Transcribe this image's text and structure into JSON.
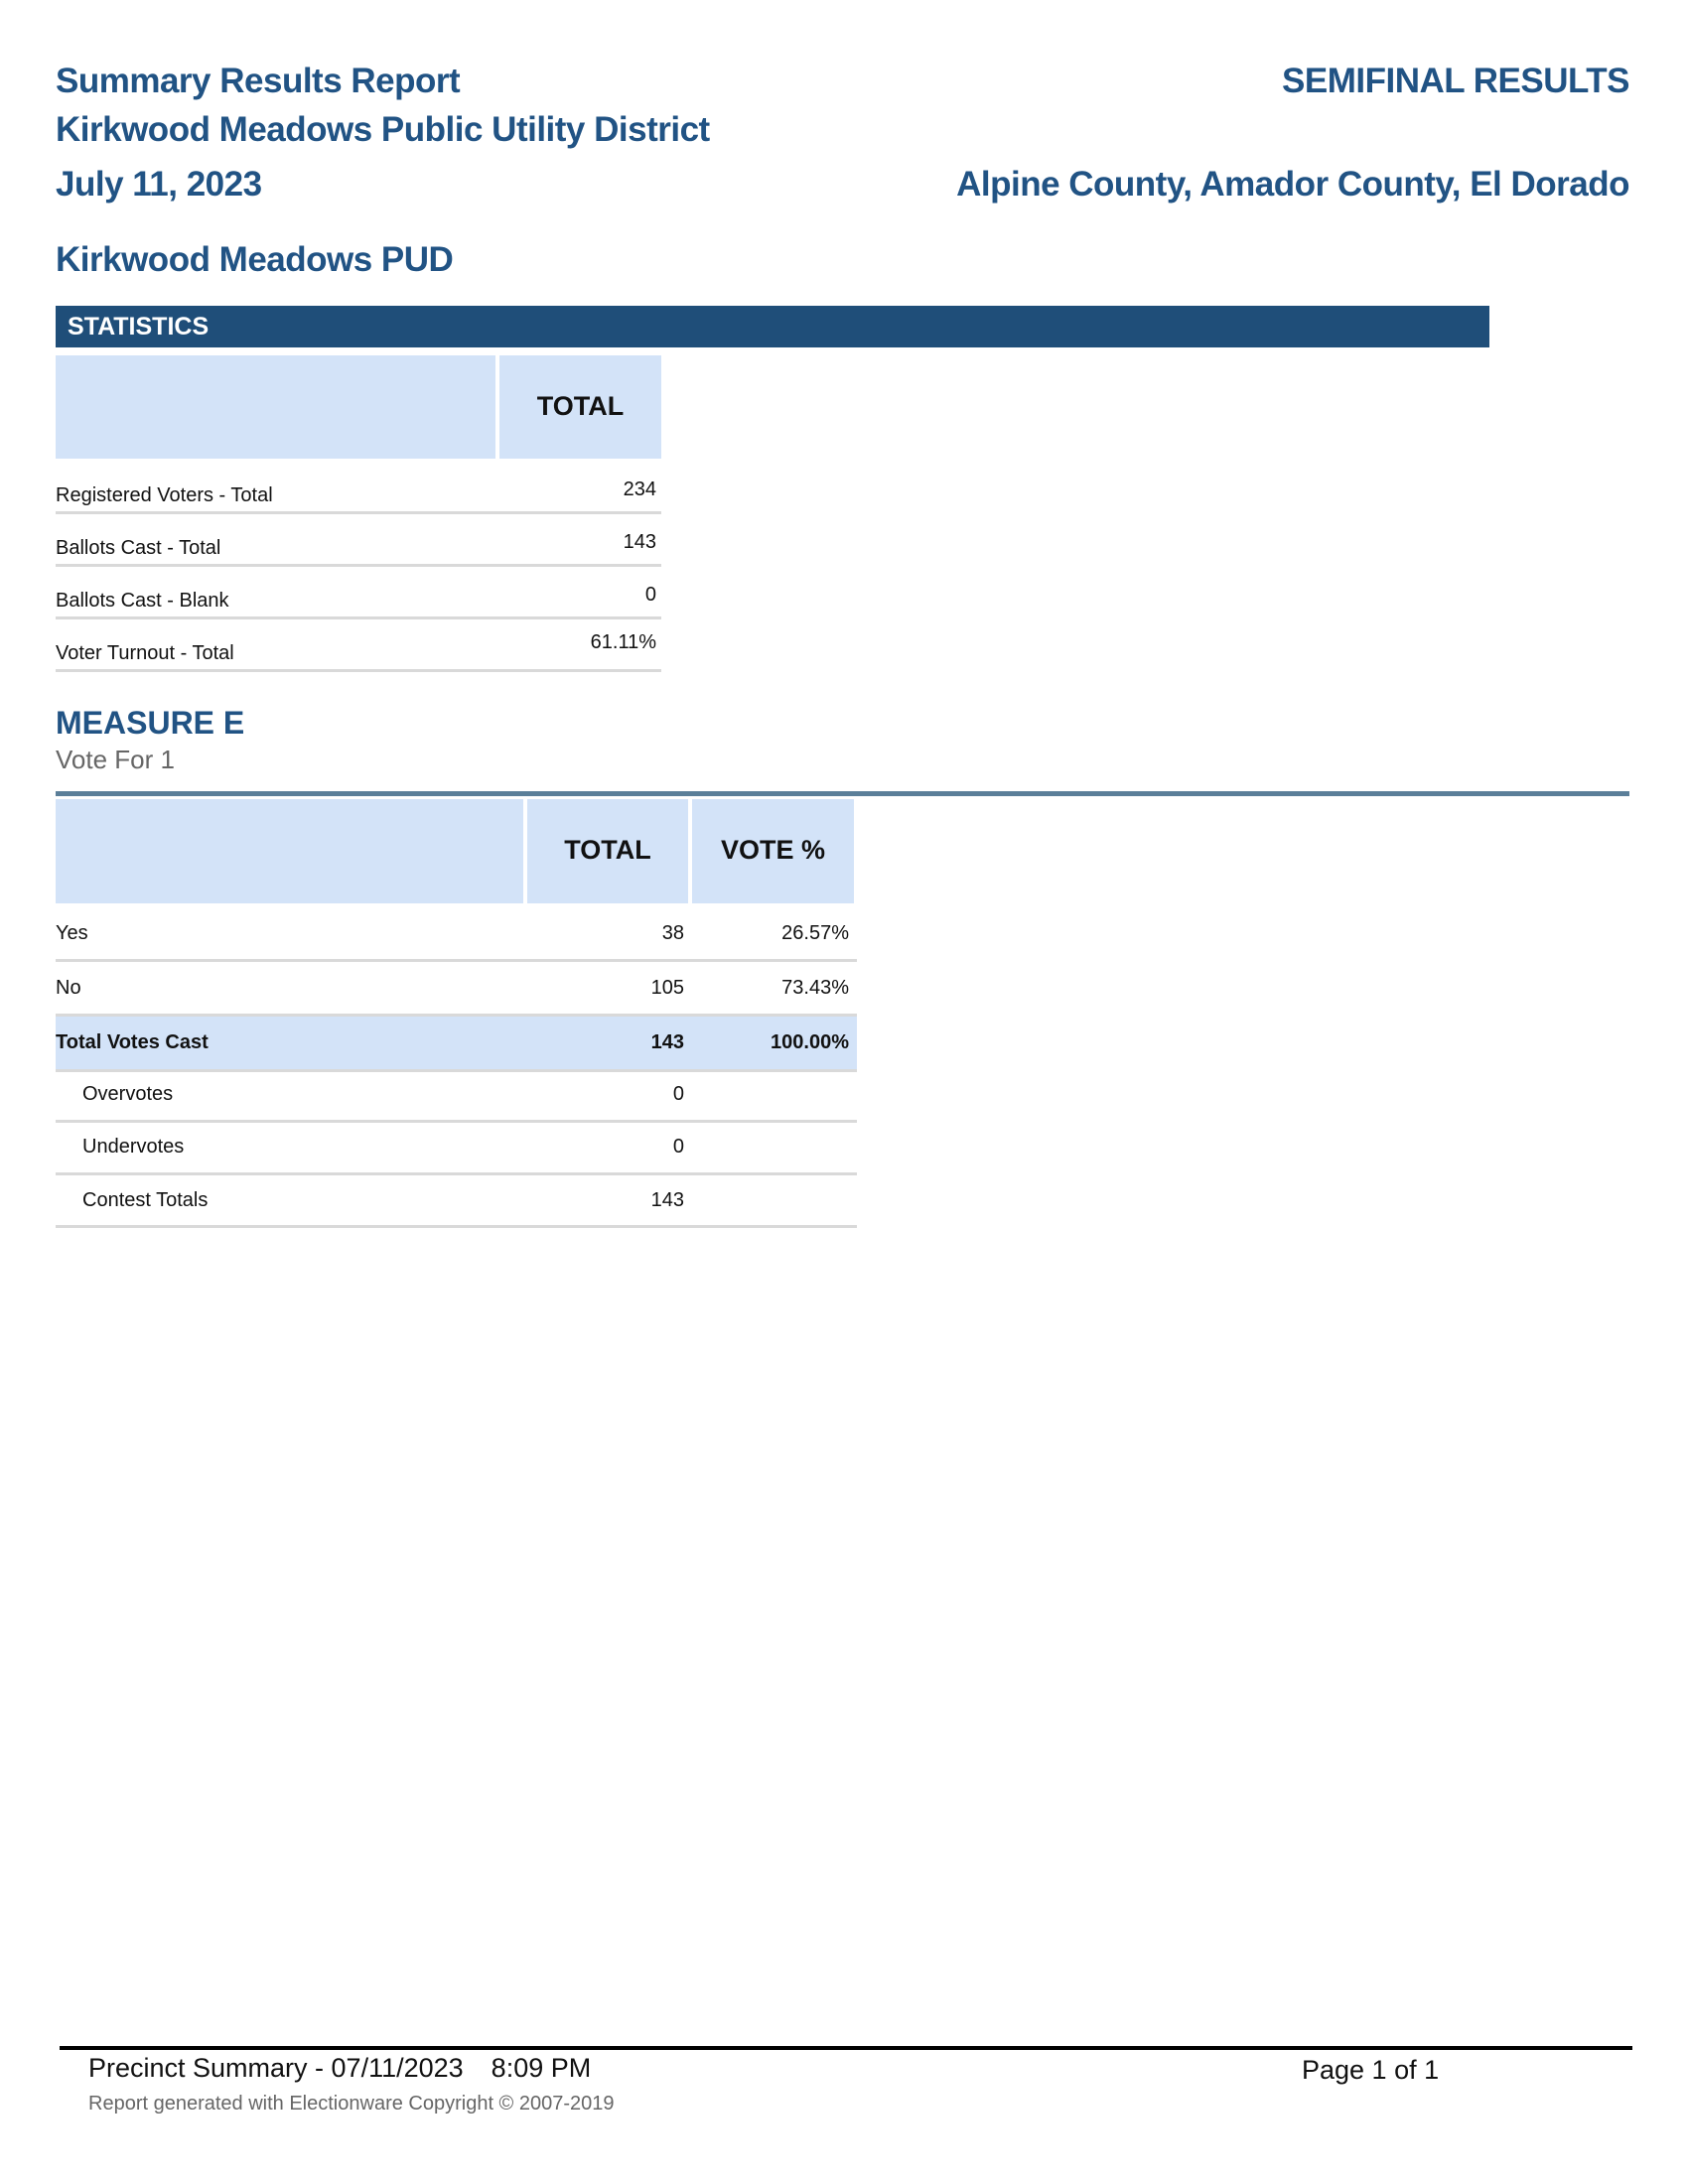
{
  "header": {
    "title": "Summary Results Report",
    "subtitle": "Kirkwood Meadows Public Utility District",
    "date": "July 11, 2023",
    "status": "SEMIFINAL RESULTS",
    "counties": "Alpine County, Amador County, El Dorado",
    "jurisdiction": "Kirkwood Meadows PUD"
  },
  "statistics": {
    "section_label": "STATISTICS",
    "column": "TOTAL",
    "rows": [
      {
        "label": "Registered Voters - Total",
        "value": "234"
      },
      {
        "label": "Ballots Cast - Total",
        "value": "143"
      },
      {
        "label": "Ballots Cast - Blank",
        "value": "0"
      },
      {
        "label": "Voter Turnout - Total",
        "value": "61.11%"
      }
    ]
  },
  "contest": {
    "title": "MEASURE E",
    "vote_for": "Vote For 1",
    "columns": [
      "TOTAL",
      "VOTE %"
    ],
    "rows": [
      {
        "label": "Yes",
        "total": "38",
        "pct": "26.57%"
      },
      {
        "label": "No",
        "total": "105",
        "pct": "73.43%"
      },
      {
        "label": "Total Votes Cast",
        "total": "143",
        "pct": "100.00%"
      },
      {
        "label": "Overvotes",
        "total": "0"
      },
      {
        "label": "Undervotes",
        "total": "0"
      },
      {
        "label": "Contest Totals",
        "total": "143"
      }
    ]
  },
  "footer": {
    "report": "Precinct Summary - 07/11/2023",
    "time": "8:09 PM",
    "page": "Page 1 of 1",
    "copyright": "Report generated with Electionware Copyright © 2007-2019"
  },
  "colors": {
    "title": "#215384",
    "bar": "#1f4e79",
    "header_fill": "#d3e3f8",
    "rule": "#5b7f99"
  }
}
